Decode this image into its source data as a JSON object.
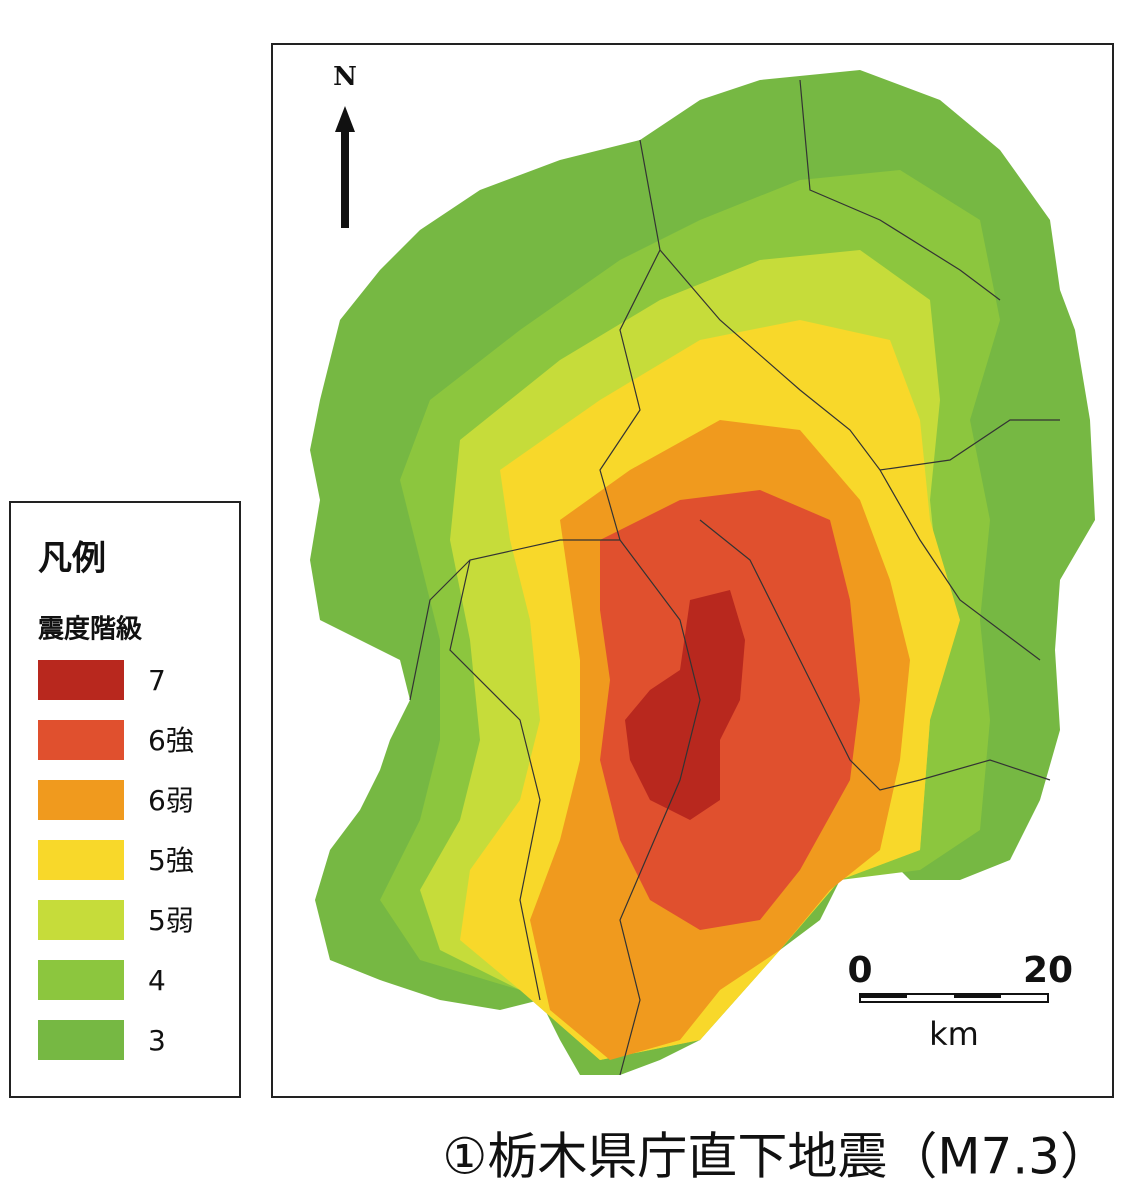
{
  "map": {
    "north": "N",
    "scale": {
      "start": "0",
      "end": "20",
      "unit": "km"
    },
    "legend": {
      "title": "凡例",
      "subtitle": "震度階級",
      "items": [
        {
          "label": "7",
          "color": "#b8281e"
        },
        {
          "label": "6強",
          "color": "#e0502e"
        },
        {
          "label": "6弱",
          "color": "#f09a1e"
        },
        {
          "label": "5強",
          "color": "#f8d82a"
        },
        {
          "label": "5弱",
          "color": "#c6dc3a"
        },
        {
          "label": "4",
          "color": "#8cc63e"
        },
        {
          "label": "3",
          "color": "#76b843"
        }
      ]
    },
    "caption": "①栃木県庁直下地震（M7.3）"
  }
}
